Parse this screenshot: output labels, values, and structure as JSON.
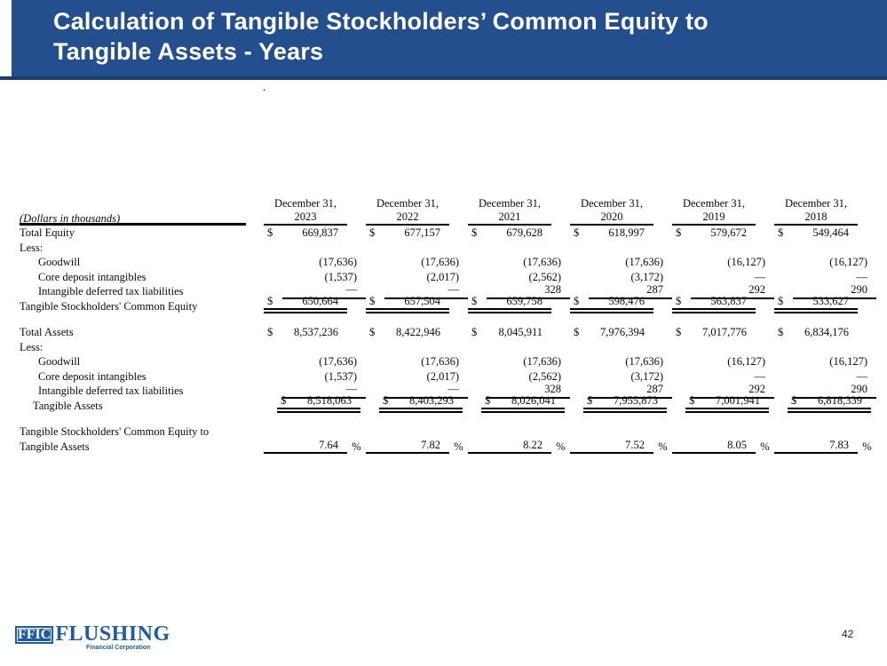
{
  "slide": {
    "title_line1": "Calculation of Tangible Stockholders’ Common Equity to",
    "title_line2": "Tangible Assets - Years",
    "stray_mark": ".",
    "page_number": "42"
  },
  "footer_logo": {
    "ticker": "FFIC",
    "name": "FLUSHING",
    "subtitle": "Financial Corporation"
  },
  "colors": {
    "banner_blue": "#234F8F",
    "banner_edge": "#1C3D6E",
    "logo_blue": "#1E5CA8"
  },
  "table": {
    "note": "(Dollars in thousands)",
    "column_header": "December 31,",
    "years": [
      "2023",
      "2022",
      "2021",
      "2020",
      "2019",
      "2018"
    ],
    "rows": [
      {
        "label": "Total Equity",
        "indent": 0,
        "dollar": true,
        "rule": "none",
        "values": [
          "669,837",
          "677,157",
          "679,628",
          "618,997",
          "579,672",
          "549,464"
        ]
      },
      {
        "label": "Less:",
        "indent": 0,
        "rule": "none",
        "values": null
      },
      {
        "label": "Goodwill",
        "indent": 21,
        "rule": "none",
        "values": [
          "(17,636)",
          "(17,636)",
          "(17,636)",
          "(17,636)",
          "(16,127)",
          "(16,127)"
        ]
      },
      {
        "label": "Core deposit intangibles",
        "indent": 21,
        "rule": "none",
        "values": [
          "(1,537)",
          "(2,017)",
          "(2,562)",
          "(3,172)",
          "—",
          "—"
        ]
      },
      {
        "label": "Intangible deferred tax liabilities",
        "indent": 21,
        "rule": "single",
        "values": [
          "—",
          "—",
          "328",
          "287",
          "292",
          "290"
        ]
      },
      {
        "label": "Tangible Stockholders' Common Equity",
        "indent": 0,
        "dollar": true,
        "rule": "double",
        "values": [
          "650,664",
          "657,504",
          "659,758",
          "598,476",
          "563,837",
          "533,627"
        ]
      },
      {
        "spacer": true
      },
      {
        "label": "Total Assets",
        "indent": 0,
        "dollar": true,
        "rule": "none",
        "values": [
          "8,537,236",
          "8,422,946",
          "8,045,911",
          "7,976,394",
          "7,017,776",
          "6,834,176"
        ]
      },
      {
        "label": "Less:",
        "indent": 0,
        "rule": "none",
        "values": null
      },
      {
        "label": "Goodwill",
        "indent": 21,
        "rule": "none",
        "values": [
          "(17,636)",
          "(17,636)",
          "(17,636)",
          "(17,636)",
          "(16,127)",
          "(16,127)"
        ]
      },
      {
        "label": "Core deposit intangibles",
        "indent": 21,
        "rule": "none",
        "values": [
          "(1,537)",
          "(2,017)",
          "(2,562)",
          "(3,172)",
          "—",
          "—"
        ]
      },
      {
        "label": "Intangible deferred tax liabilities",
        "indent": 21,
        "rule": "single",
        "values": [
          "—",
          "—",
          "328",
          "287",
          "292",
          "290"
        ]
      },
      {
        "label": "Tangible Assets",
        "indent": 15,
        "dollar": true,
        "rule": "double",
        "values": [
          "8,518,063",
          "8,403,293",
          "8,026,041",
          "7,955,873",
          "7,001,941",
          "6,818,339"
        ]
      },
      {
        "spacer": true
      },
      {
        "label": "Tangible Stockholders' Common Equity to",
        "indent": 0,
        "rule": "none",
        "values": null
      },
      {
        "label": "Tangible Assets",
        "indent": 0,
        "rule": "single",
        "suffix": "%",
        "values": [
          "7.64",
          "7.82",
          "8.22",
          "7.52",
          "8.05",
          "7.83"
        ]
      }
    ]
  }
}
